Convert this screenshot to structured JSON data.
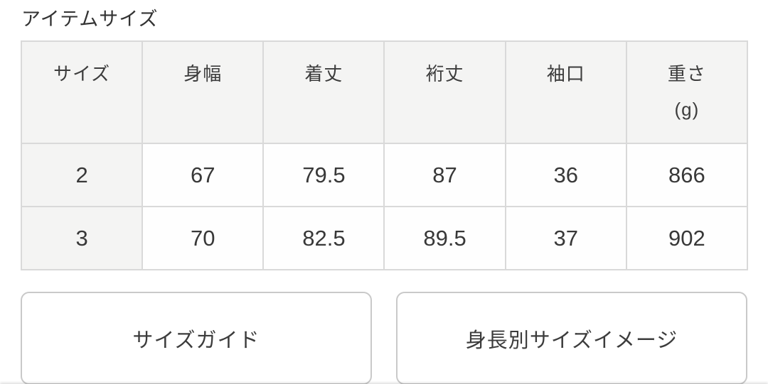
{
  "page": {
    "title": "アイテムサイズ"
  },
  "size_table": {
    "columns": [
      "サイズ",
      "身幅",
      "着丈",
      "裄丈",
      "袖口",
      "重さ"
    ],
    "weight_unit": "(g)",
    "rows": [
      [
        "2",
        "67",
        "79.5",
        "87",
        "36",
        "866"
      ],
      [
        "3",
        "70",
        "82.5",
        "89.5",
        "37",
        "902"
      ]
    ]
  },
  "buttons": {
    "size_guide": "サイズガイド",
    "height_size_image": "身長別サイズイメージ"
  }
}
